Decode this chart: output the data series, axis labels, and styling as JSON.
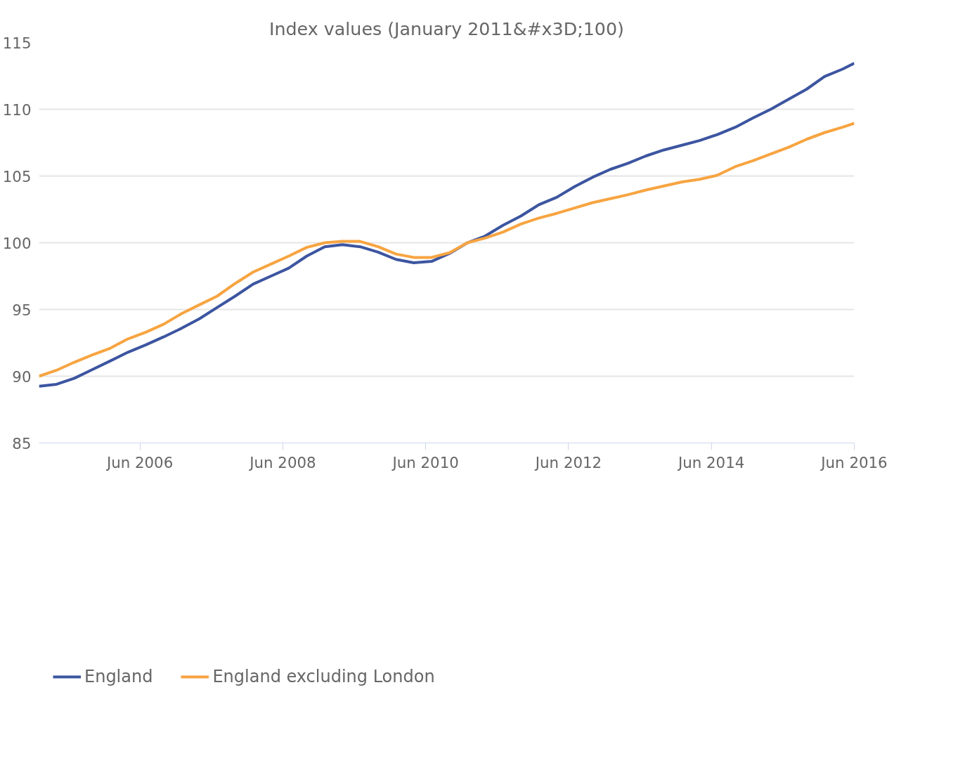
{
  "chart_data": {
    "type": "line",
    "title": "Index values (January 2011&#x3D;100)",
    "x": [
      "2005-01",
      "2005-04",
      "2005-07",
      "2005-10",
      "2006-01",
      "2006-04",
      "2006-07",
      "2006-10",
      "2007-01",
      "2007-04",
      "2007-07",
      "2007-10",
      "2008-01",
      "2008-04",
      "2008-07",
      "2008-10",
      "2009-01",
      "2009-04",
      "2009-07",
      "2009-10",
      "2010-01",
      "2010-04",
      "2010-07",
      "2010-10",
      "2011-01",
      "2011-04",
      "2011-07",
      "2011-10",
      "2012-01",
      "2012-04",
      "2012-07",
      "2012-10",
      "2013-01",
      "2013-04",
      "2013-07",
      "2013-10",
      "2014-01",
      "2014-04",
      "2014-07",
      "2014-10",
      "2015-01",
      "2015-04",
      "2015-07",
      "2015-10",
      "2016-01",
      "2016-04",
      "2016-06"
    ],
    "series": [
      {
        "name": "England",
        "color": "#3c55a0",
        "values": [
          89.25,
          89.4,
          89.85,
          90.5,
          91.15,
          91.8,
          92.35,
          92.95,
          93.6,
          94.3,
          95.15,
          96.0,
          96.9,
          97.5,
          98.1,
          99.0,
          99.7,
          99.85,
          99.7,
          99.3,
          98.75,
          98.5,
          98.6,
          99.2,
          100.0,
          100.5,
          101.3,
          102.0,
          102.85,
          103.4,
          104.2,
          104.9,
          105.5,
          105.95,
          106.5,
          106.95,
          107.3,
          107.65,
          108.1,
          108.65,
          109.35,
          110.0,
          110.75,
          111.5,
          112.45,
          113.0,
          113.45
        ]
      },
      {
        "name": "England excluding London",
        "color": "#f7a441",
        "values": [
          90.0,
          90.45,
          91.05,
          91.6,
          92.1,
          92.8,
          93.3,
          93.9,
          94.7,
          95.35,
          96.0,
          96.95,
          97.8,
          98.4,
          99.0,
          99.65,
          100.0,
          100.1,
          100.1,
          99.7,
          99.15,
          98.9,
          98.9,
          99.25,
          100.0,
          100.35,
          100.8,
          101.4,
          101.85,
          102.2,
          102.6,
          103.0,
          103.3,
          103.6,
          103.95,
          104.25,
          104.55,
          104.75,
          105.05,
          105.7,
          106.15,
          106.65,
          107.15,
          107.75,
          108.25,
          108.65,
          108.95
        ]
      }
    ],
    "xlim": [
      "2005-01",
      "2016-06"
    ],
    "xticks": [
      {
        "value": "2006-06",
        "label": "Jun 2006"
      },
      {
        "value": "2008-06",
        "label": "Jun 2008"
      },
      {
        "value": "2010-06",
        "label": "Jun 2010"
      },
      {
        "value": "2012-06",
        "label": "Jun 2012"
      },
      {
        "value": "2014-06",
        "label": "Jun 2014"
      },
      {
        "value": "2016-06",
        "label": "Jun 2016"
      }
    ],
    "ylim": [
      85,
      115
    ],
    "yticks": [
      85,
      90,
      95,
      100,
      105,
      110,
      115
    ],
    "grid": "y",
    "legend": "bottom left",
    "marker": "none",
    "line_style": "solid"
  }
}
